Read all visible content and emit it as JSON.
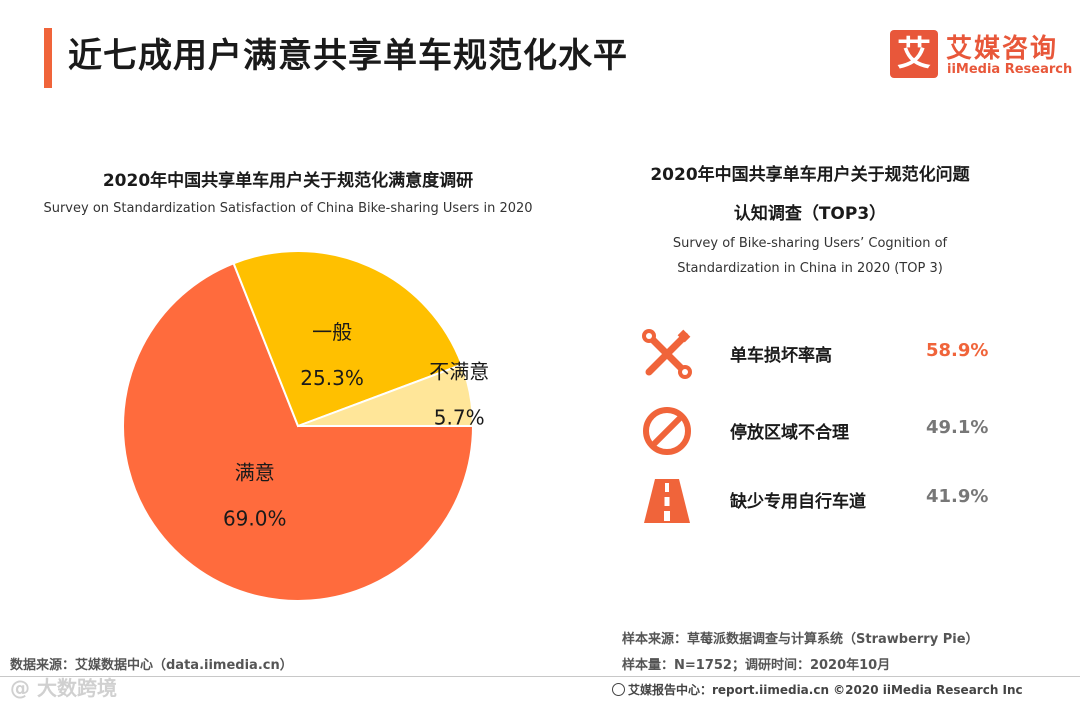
{
  "header": {
    "title": "近七成用户满意共享单车规范化水平",
    "logo_mark": "艾",
    "logo_cn": "艾媒咨询",
    "logo_en": "iiMedia Research"
  },
  "left_chart": {
    "title_cn": "2020年中国共享单车用户关于规范化满意度调研",
    "title_en": "Survey on Standardization Satisfaction of China Bike-sharing  Users in 2020"
  },
  "right_panel": {
    "title_cn_line1": "2020年中国共享单车用户关于规范化问题",
    "title_cn_line2": "认知调查（TOP3）",
    "title_en_line1": "Survey of Bike-sharing Users’  Cognition of",
    "title_en_line2": "Standardization in China in 2020 (TOP 3)",
    "items": [
      {
        "label": "单车损坏率高",
        "value": "58.9%",
        "icon": "wrench-cross-icon",
        "value_color": "#f0643a"
      },
      {
        "label": "停放区域不合理",
        "value": "49.1%",
        "icon": "prohibited-icon",
        "value_color": "#777777"
      },
      {
        "label": "缺少专用自行车道",
        "value": "41.9%",
        "icon": "road-icon",
        "value_color": "#777777"
      }
    ]
  },
  "chart_data": {
    "type": "pie",
    "title": "2020年中国共享单车用户关于规范化满意度调研",
    "categories": [
      "满意",
      "一般",
      "不满意"
    ],
    "values": [
      69.0,
      25.3,
      5.7
    ],
    "value_labels": [
      "69.0%",
      "25.3%",
      "5.7%"
    ],
    "colors": [
      "#ff6b3d",
      "#ffc000",
      "#ffe699"
    ],
    "unit": "%"
  },
  "sources": {
    "left": "数据来源：艾媒数据中心（data.iimedia.cn）",
    "right_line1": "样本来源：草莓派数据调查与计算系统（Strawberry Pie）",
    "right_line2": "样本量：N=1752；调研时间：2020年10月",
    "footer": "艾媒报告中心：report.iimedia.cn ©2020  iiMedia Research  Inc",
    "watermark": "@ 大数跨境"
  },
  "colors": {
    "accent": "#f0643a",
    "icon": "#f0643a"
  }
}
